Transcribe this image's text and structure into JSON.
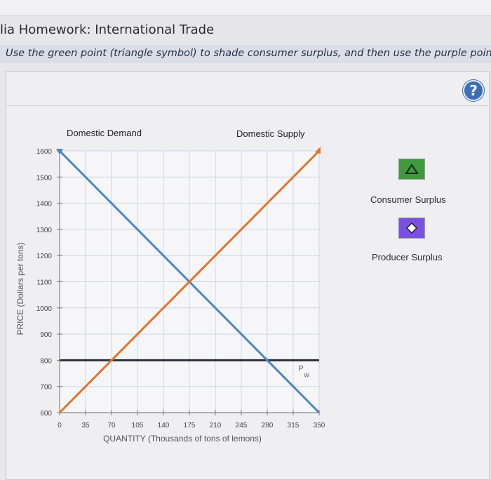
{
  "header": {
    "title": "lia Homework: International Trade",
    "instruction": "Use the green point (triangle symbol) to shade consumer surplus, and then use the purple point"
  },
  "help": {
    "label": "?"
  },
  "legend": {
    "consumer_surplus": {
      "label": "Consumer Surplus",
      "color": "#3f9a3d",
      "icon": "triangle-icon"
    },
    "producer_surplus": {
      "label": "Producer Surplus",
      "color": "#7b4fe0",
      "icon": "diamond-icon"
    }
  },
  "chart_data": {
    "type": "line",
    "xlabel": "QUANTITY (Thousands of tons of lemons)",
    "ylabel": "PRICE (Dollars per tons)",
    "xlim": [
      0,
      350
    ],
    "ylim": [
      600,
      1600
    ],
    "x_ticks": [
      0,
      35,
      70,
      105,
      140,
      175,
      210,
      245,
      280,
      315,
      350
    ],
    "y_ticks": [
      600,
      700,
      800,
      900,
      1000,
      1100,
      1200,
      1300,
      1400,
      1500,
      1600
    ],
    "grid": true,
    "series": [
      {
        "name": "Domestic Demand",
        "color": "#4a86c8",
        "points": [
          [
            0,
            1600
          ],
          [
            350,
            600
          ]
        ]
      },
      {
        "name": "Domestic Supply",
        "color": "#e2742a",
        "points": [
          [
            0,
            600
          ],
          [
            350,
            1600
          ]
        ]
      }
    ],
    "world_price": {
      "value": 800,
      "label_main": "P",
      "label_sub": "W",
      "color": "#2b2f3a"
    }
  }
}
